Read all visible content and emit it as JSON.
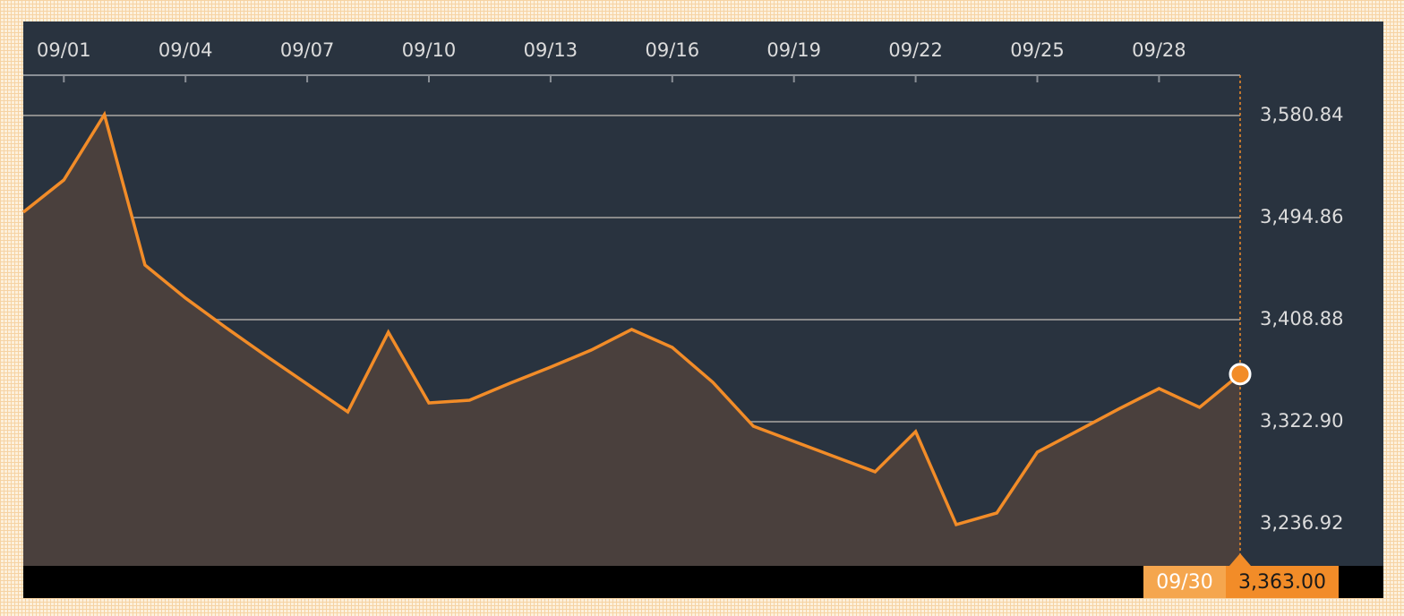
{
  "chart_data": {
    "type": "line",
    "categories": [
      null,
      "09/01",
      null,
      null,
      "09/04",
      null,
      null,
      "09/07",
      null,
      null,
      "09/10",
      null,
      null,
      "09/13",
      null,
      null,
      "09/16",
      null,
      null,
      "09/19",
      null,
      null,
      "09/22",
      null,
      null,
      "09/25",
      null,
      null,
      "09/28",
      null,
      null
    ],
    "values": [
      3499.4,
      3526.5,
      3581.6,
      3454.9,
      3427.0,
      3402.1,
      3378.0,
      3354.6,
      3331.2,
      3398.3,
      3338.7,
      3341.0,
      3355.3,
      3368.9,
      3383.2,
      3400.6,
      3385.5,
      3356.1,
      3319.1,
      3306.3,
      3293.5,
      3280.7,
      3314.6,
      3236.2,
      3246.0,
      3297.3,
      3315.3,
      3333.5,
      3350.8,
      3335.0,
      3363.0
    ],
    "color": "#f28c28",
    "ylim": [
      3201.47,
      3614.78
    ],
    "yticks": [
      {
        "value": 3236.92,
        "label": "3,236.92"
      },
      {
        "value": 3322.9,
        "label": "3,322.90"
      },
      {
        "value": 3408.88,
        "label": "3,408.88"
      },
      {
        "value": 3494.86,
        "label": "3,494.86"
      },
      {
        "value": 3580.84,
        "label": "3,580.84"
      }
    ],
    "grid": true,
    "highlight": {
      "category": "09/30",
      "value": 3363.0,
      "value_label": "3,363.00"
    }
  }
}
